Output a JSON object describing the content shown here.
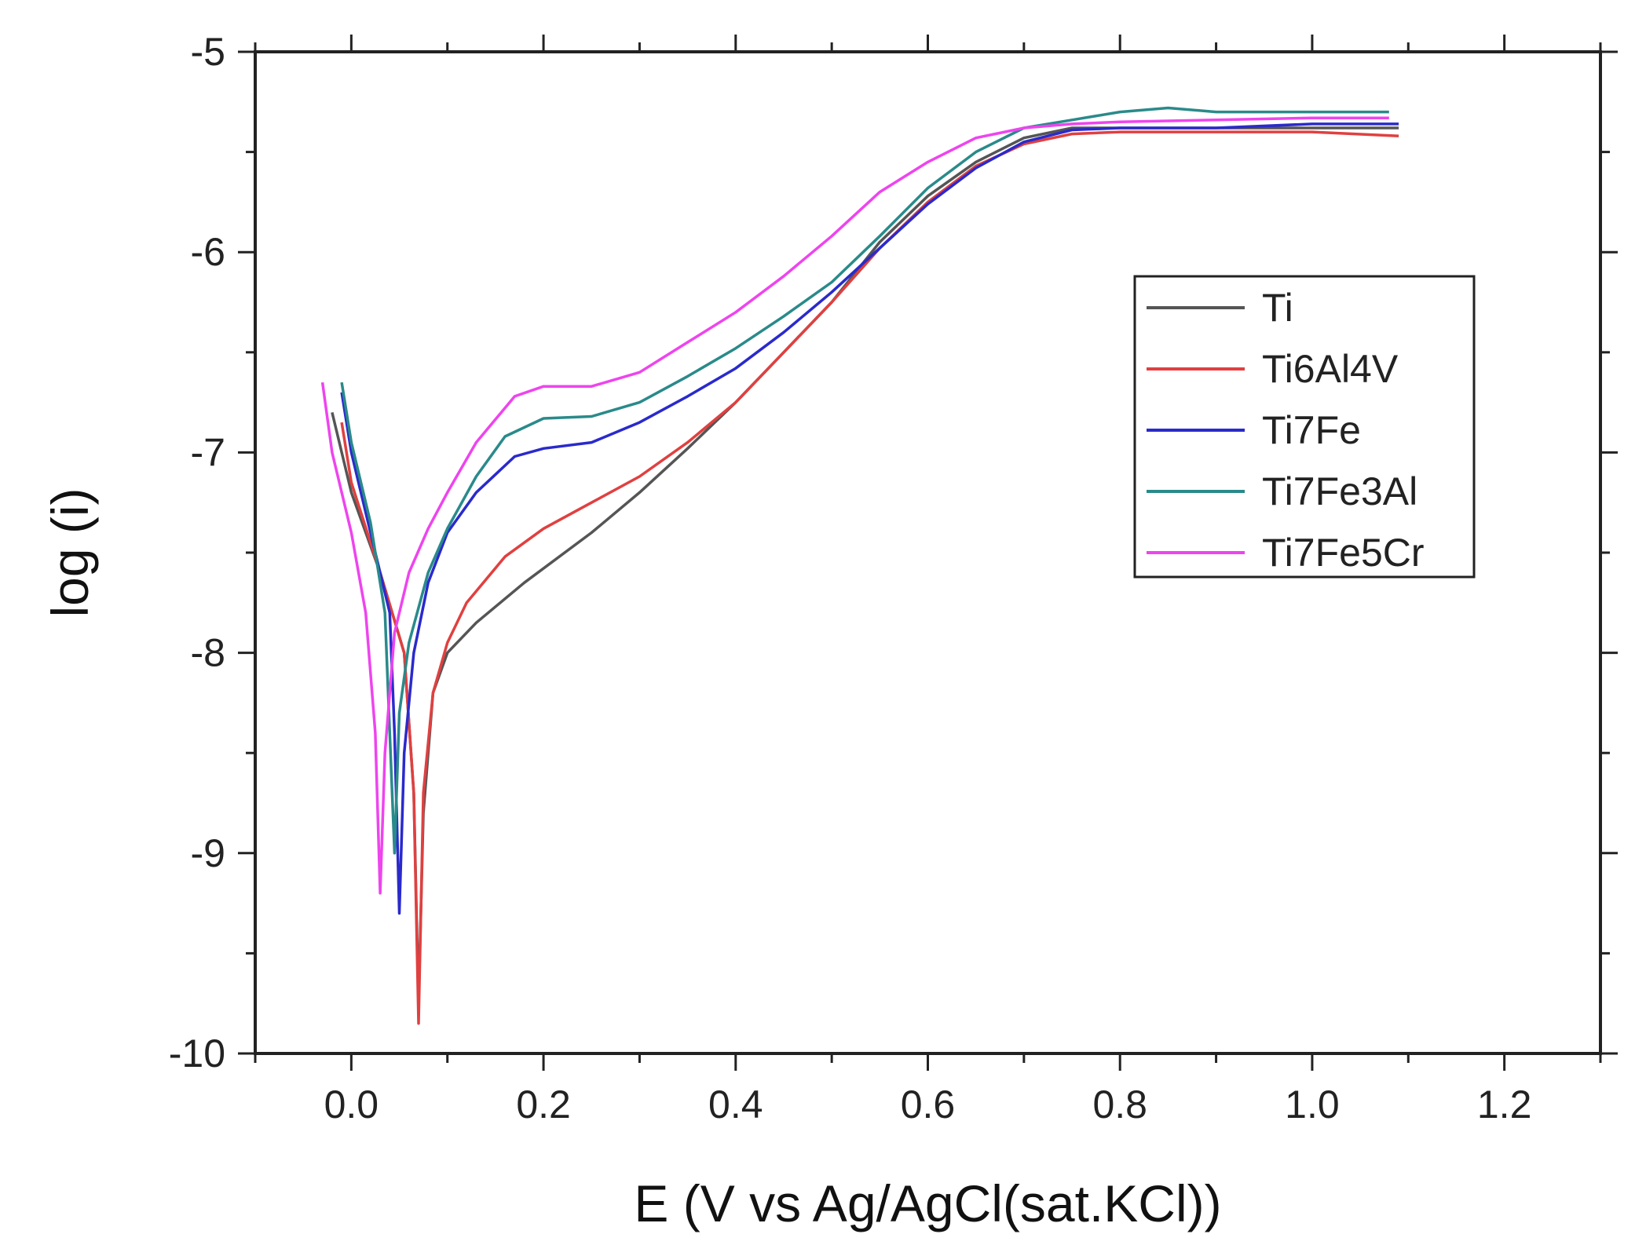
{
  "chart_data": {
    "type": "line",
    "title": "",
    "xlabel": "E (V vs Ag/AgCl(sat.KCl))",
    "ylabel": "log (i)",
    "xlim": [
      -0.1,
      1.3
    ],
    "ylim": [
      -10,
      -5
    ],
    "xticks": [
      0.0,
      0.2,
      0.4,
      0.6,
      0.8,
      1.0,
      1.2
    ],
    "xtick_labels": [
      "0.0",
      "0.2",
      "0.4",
      "0.6",
      "0.8",
      "1.0",
      "1.2"
    ],
    "yticks": [
      -10,
      -9,
      -8,
      -7,
      -6,
      -5
    ],
    "ytick_labels": [
      "-10",
      "-9",
      "-8",
      "-7",
      "-6",
      "-5"
    ],
    "grid": false,
    "legend_position": "upper-right",
    "series": [
      {
        "name": "Ti",
        "color": "#555555",
        "points": [
          [
            -0.02,
            -6.8
          ],
          [
            0.0,
            -7.2
          ],
          [
            0.03,
            -7.6
          ],
          [
            0.055,
            -8.0
          ],
          [
            0.065,
            -8.7
          ],
          [
            0.07,
            -9.75
          ],
          [
            0.075,
            -8.8
          ],
          [
            0.085,
            -8.2
          ],
          [
            0.1,
            -8.0
          ],
          [
            0.13,
            -7.85
          ],
          [
            0.18,
            -7.65
          ],
          [
            0.25,
            -7.4
          ],
          [
            0.3,
            -7.2
          ],
          [
            0.35,
            -6.98
          ],
          [
            0.4,
            -6.75
          ],
          [
            0.45,
            -6.5
          ],
          [
            0.5,
            -6.25
          ],
          [
            0.55,
            -5.95
          ],
          [
            0.6,
            -5.72
          ],
          [
            0.65,
            -5.55
          ],
          [
            0.7,
            -5.43
          ],
          [
            0.75,
            -5.38
          ],
          [
            0.8,
            -5.38
          ],
          [
            0.9,
            -5.38
          ],
          [
            1.0,
            -5.38
          ],
          [
            1.09,
            -5.38
          ]
        ]
      },
      {
        "name": "Ti6Al4V",
        "color": "#e04040",
        "points": [
          [
            -0.01,
            -6.85
          ],
          [
            0.0,
            -7.15
          ],
          [
            0.03,
            -7.6
          ],
          [
            0.055,
            -8.0
          ],
          [
            0.065,
            -8.7
          ],
          [
            0.07,
            -9.85
          ],
          [
            0.075,
            -8.7
          ],
          [
            0.085,
            -8.2
          ],
          [
            0.1,
            -7.95
          ],
          [
            0.12,
            -7.75
          ],
          [
            0.16,
            -7.52
          ],
          [
            0.2,
            -7.38
          ],
          [
            0.25,
            -7.25
          ],
          [
            0.3,
            -7.12
          ],
          [
            0.35,
            -6.95
          ],
          [
            0.4,
            -6.75
          ],
          [
            0.45,
            -6.5
          ],
          [
            0.5,
            -6.25
          ],
          [
            0.55,
            -5.98
          ],
          [
            0.6,
            -5.75
          ],
          [
            0.65,
            -5.57
          ],
          [
            0.7,
            -5.46
          ],
          [
            0.75,
            -5.41
          ],
          [
            0.8,
            -5.4
          ],
          [
            0.9,
            -5.4
          ],
          [
            1.0,
            -5.4
          ],
          [
            1.09,
            -5.42
          ]
        ]
      },
      {
        "name": "Ti7Fe",
        "color": "#2a2acc",
        "points": [
          [
            -0.01,
            -6.7
          ],
          [
            0.0,
            -7.0
          ],
          [
            0.02,
            -7.4
          ],
          [
            0.04,
            -7.8
          ],
          [
            0.045,
            -8.4
          ],
          [
            0.05,
            -9.3
          ],
          [
            0.055,
            -8.5
          ],
          [
            0.065,
            -8.0
          ],
          [
            0.08,
            -7.65
          ],
          [
            0.1,
            -7.4
          ],
          [
            0.13,
            -7.2
          ],
          [
            0.17,
            -7.02
          ],
          [
            0.2,
            -6.98
          ],
          [
            0.25,
            -6.95
          ],
          [
            0.3,
            -6.85
          ],
          [
            0.35,
            -6.72
          ],
          [
            0.4,
            -6.58
          ],
          [
            0.45,
            -6.4
          ],
          [
            0.5,
            -6.2
          ],
          [
            0.55,
            -5.98
          ],
          [
            0.6,
            -5.76
          ],
          [
            0.65,
            -5.58
          ],
          [
            0.7,
            -5.45
          ],
          [
            0.75,
            -5.39
          ],
          [
            0.8,
            -5.38
          ],
          [
            0.9,
            -5.38
          ],
          [
            1.0,
            -5.36
          ],
          [
            1.09,
            -5.36
          ]
        ]
      },
      {
        "name": "Ti7Fe3Al",
        "color": "#2a8a8a",
        "points": [
          [
            -0.01,
            -6.65
          ],
          [
            0.0,
            -6.95
          ],
          [
            0.02,
            -7.35
          ],
          [
            0.035,
            -7.8
          ],
          [
            0.04,
            -8.4
          ],
          [
            0.045,
            -9.0
          ],
          [
            0.05,
            -8.3
          ],
          [
            0.06,
            -7.95
          ],
          [
            0.08,
            -7.6
          ],
          [
            0.1,
            -7.38
          ],
          [
            0.13,
            -7.12
          ],
          [
            0.16,
            -6.92
          ],
          [
            0.2,
            -6.83
          ],
          [
            0.25,
            -6.82
          ],
          [
            0.3,
            -6.75
          ],
          [
            0.35,
            -6.62
          ],
          [
            0.4,
            -6.48
          ],
          [
            0.45,
            -6.32
          ],
          [
            0.5,
            -6.15
          ],
          [
            0.55,
            -5.92
          ],
          [
            0.6,
            -5.68
          ],
          [
            0.65,
            -5.5
          ],
          [
            0.7,
            -5.38
          ],
          [
            0.75,
            -5.34
          ],
          [
            0.8,
            -5.3
          ],
          [
            0.85,
            -5.28
          ],
          [
            0.9,
            -5.3
          ],
          [
            1.0,
            -5.3
          ],
          [
            1.08,
            -5.3
          ]
        ]
      },
      {
        "name": "Ti7Fe5Cr",
        "color": "#ee44ee",
        "points": [
          [
            -0.03,
            -6.65
          ],
          [
            -0.02,
            -7.0
          ],
          [
            0.0,
            -7.4
          ],
          [
            0.015,
            -7.8
          ],
          [
            0.025,
            -8.4
          ],
          [
            0.03,
            -9.2
          ],
          [
            0.035,
            -8.5
          ],
          [
            0.045,
            -7.9
          ],
          [
            0.06,
            -7.6
          ],
          [
            0.08,
            -7.38
          ],
          [
            0.1,
            -7.2
          ],
          [
            0.13,
            -6.95
          ],
          [
            0.17,
            -6.72
          ],
          [
            0.2,
            -6.67
          ],
          [
            0.25,
            -6.67
          ],
          [
            0.3,
            -6.6
          ],
          [
            0.35,
            -6.45
          ],
          [
            0.4,
            -6.3
          ],
          [
            0.45,
            -6.12
          ],
          [
            0.5,
            -5.92
          ],
          [
            0.55,
            -5.7
          ],
          [
            0.6,
            -5.55
          ],
          [
            0.65,
            -5.43
          ],
          [
            0.7,
            -5.38
          ],
          [
            0.75,
            -5.36
          ],
          [
            0.8,
            -5.35
          ],
          [
            0.9,
            -5.34
          ],
          [
            1.0,
            -5.33
          ],
          [
            1.08,
            -5.33
          ]
        ]
      }
    ]
  }
}
